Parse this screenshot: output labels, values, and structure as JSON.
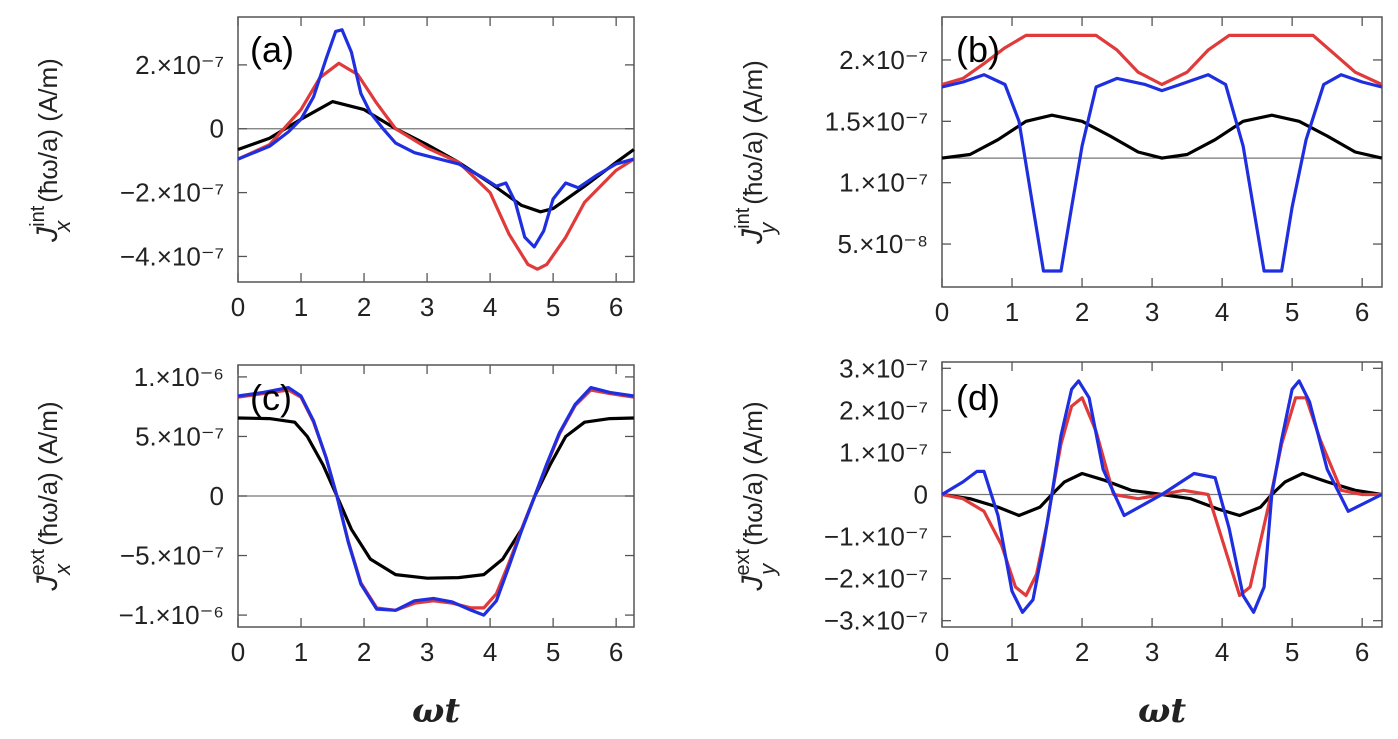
{
  "chart_data": [
    {
      "id": "a",
      "type": "line",
      "panel_label": "(a)",
      "ylabel": "J_x^int (ħω/a) (A/m)",
      "ylabel_parts": {
        "sym": "J",
        "sub": "x",
        "sup": "int",
        "rest": "(ħω/a) (A/m)"
      },
      "xlabel": "",
      "xlim": [
        0,
        6.2832
      ],
      "ylim": [
        -4.8e-07,
        3.5e-07
      ],
      "hline": 0,
      "xticks": [
        {
          "v": 0,
          "label": "0"
        },
        {
          "v": 1,
          "label": "1"
        },
        {
          "v": 2,
          "label": "2"
        },
        {
          "v": 3,
          "label": "3"
        },
        {
          "v": 4,
          "label": "4"
        },
        {
          "v": 5,
          "label": "5"
        },
        {
          "v": 6,
          "label": "6"
        }
      ],
      "yticks": [
        {
          "v": 2e-07,
          "label": "2.×10⁻⁷"
        },
        {
          "v": 0,
          "label": "0"
        },
        {
          "v": -2e-07,
          "label": "−2.×10⁻⁷"
        },
        {
          "v": -4e-07,
          "label": "−4.×10⁻⁷"
        }
      ],
      "series": [
        {
          "name": "black",
          "color": "#000000",
          "x": [
            0,
            0.5,
            1,
            1.5,
            2,
            2.5,
            3,
            3.5,
            4,
            4.5,
            4.8,
            5,
            5.5,
            6,
            6.28
          ],
          "y": [
            -6.5e-08,
            -3e-08,
            3e-08,
            8.5e-08,
            6e-08,
            0,
            -5e-08,
            -1.05e-07,
            -1.7e-07,
            -2.4e-07,
            -2.6e-07,
            -2.5e-07,
            -1.8e-07,
            -1.05e-07,
            -6.5e-08
          ]
        },
        {
          "name": "red",
          "color": "#e03a3a",
          "x": [
            0,
            0.5,
            1,
            1.3,
            1.6,
            1.9,
            2.2,
            2.5,
            3,
            3.5,
            4,
            4.3,
            4.6,
            4.75,
            4.9,
            5.2,
            5.5,
            6,
            6.28
          ],
          "y": [
            -9.5e-08,
            -5e-08,
            6e-08,
            1.6e-07,
            2.05e-07,
            1.7e-07,
            8e-08,
            0,
            -6e-08,
            -1.05e-07,
            -2e-07,
            -3.3e-07,
            -4.25e-07,
            -4.4e-07,
            -4.25e-07,
            -3.4e-07,
            -2.3e-07,
            -1.3e-07,
            -9.5e-08
          ]
        },
        {
          "name": "blue",
          "color": "#1f2fe0",
          "x": [
            0,
            0.5,
            0.8,
            1,
            1.2,
            1.4,
            1.55,
            1.65,
            1.8,
            1.95,
            2.1,
            2.3,
            2.5,
            2.8,
            3,
            3.5,
            3.9,
            4.1,
            4.25,
            4.4,
            4.55,
            4.7,
            4.85,
            5,
            5.2,
            5.4,
            5.7,
            6,
            6.28
          ],
          "y": [
            -9.5e-08,
            -5.5e-08,
            -1e-08,
            3e-08,
            1e-07,
            2.2e-07,
            3.05e-07,
            3.1e-07,
            2.4e-07,
            1.1e-07,
            5e-08,
            0,
            -4.5e-08,
            -7.5e-08,
            -8.5e-08,
            -1.1e-07,
            -1.55e-07,
            -1.8e-07,
            -1.7e-07,
            -2.3e-07,
            -3.4e-07,
            -3.7e-07,
            -3.2e-07,
            -2.2e-07,
            -1.7e-07,
            -1.85e-07,
            -1.45e-07,
            -1.1e-07,
            -9.5e-08
          ]
        }
      ]
    },
    {
      "id": "b",
      "type": "line",
      "panel_label": "(b)",
      "ylabel": "J_y^int (ħω/a) (A/m)",
      "ylabel_parts": {
        "sym": "J",
        "sub": "y",
        "sup": "int",
        "rest": "(ħω/a) (A/m)"
      },
      "xlabel": "",
      "xlim": [
        0,
        6.2832
      ],
      "ylim": [
        1.5e-08,
        2.35e-07
      ],
      "hline": 1.2e-07,
      "xticks": [
        {
          "v": 0,
          "label": "0"
        },
        {
          "v": 1,
          "label": "1"
        },
        {
          "v": 2,
          "label": "2"
        },
        {
          "v": 3,
          "label": "3"
        },
        {
          "v": 4,
          "label": "4"
        },
        {
          "v": 5,
          "label": "5"
        },
        {
          "v": 6,
          "label": "6"
        }
      ],
      "yticks": [
        {
          "v": 2e-07,
          "label": "2.×10⁻⁷"
        },
        {
          "v": 1.5e-07,
          "label": "1.5×10⁻⁷"
        },
        {
          "v": 1e-07,
          "label": "1.×10⁻⁷"
        },
        {
          "v": 5e-08,
          "label": "5.×10⁻⁸"
        }
      ],
      "series": [
        {
          "name": "black",
          "color": "#000000",
          "x": [
            0,
            0.4,
            0.8,
            1.2,
            1.57,
            2,
            2.4,
            2.8,
            3.14,
            3.5,
            3.9,
            4.3,
            4.71,
            5.1,
            5.5,
            5.9,
            6.28
          ],
          "y": [
            1.2e-07,
            1.23e-07,
            1.35e-07,
            1.5e-07,
            1.55e-07,
            1.5e-07,
            1.38e-07,
            1.25e-07,
            1.2e-07,
            1.23e-07,
            1.35e-07,
            1.5e-07,
            1.55e-07,
            1.5e-07,
            1.38e-07,
            1.25e-07,
            1.2e-07
          ]
        },
        {
          "name": "red",
          "color": "#e03a3a",
          "x": [
            0,
            0.3,
            0.6,
            0.9,
            1.2,
            2.2,
            2.5,
            2.8,
            3.14,
            3.5,
            3.8,
            4.1,
            4.4,
            5.3,
            5.6,
            5.9,
            6.28
          ],
          "y": [
            1.8e-07,
            1.85e-07,
            1.97e-07,
            2.1e-07,
            2.2e-07,
            2.2e-07,
            2.08e-07,
            1.9e-07,
            1.8e-07,
            1.9e-07,
            2.08e-07,
            2.2e-07,
            2.2e-07,
            2.2e-07,
            2.05e-07,
            1.9e-07,
            1.8e-07
          ]
        },
        {
          "name": "blue",
          "color": "#1f2fe0",
          "x": [
            0,
            0.3,
            0.6,
            0.9,
            1.1,
            1.3,
            1.45,
            1.7,
            1.85,
            2.0,
            2.2,
            2.5,
            2.9,
            3.14,
            3.4,
            3.8,
            4.05,
            4.3,
            4.6,
            4.85,
            5.0,
            5.2,
            5.45,
            5.7,
            6,
            6.28
          ],
          "y": [
            1.78e-07,
            1.82e-07,
            1.88e-07,
            1.8e-07,
            1.5e-07,
            8e-08,
            2.8e-08,
            2.8e-08,
            8e-08,
            1.3e-07,
            1.78e-07,
            1.85e-07,
            1.8e-07,
            1.75e-07,
            1.8e-07,
            1.88e-07,
            1.8e-07,
            1.3e-07,
            2.8e-08,
            2.8e-08,
            8e-08,
            1.35e-07,
            1.8e-07,
            1.88e-07,
            1.82e-07,
            1.78e-07
          ]
        }
      ]
    },
    {
      "id": "c",
      "type": "line",
      "panel_label": "(c)",
      "ylabel": "J_x^ext (ħω/a) (A/m)",
      "ylabel_parts": {
        "sym": "J",
        "sub": "x",
        "sup": "ext",
        "rest": "(ħω/a) (A/m)"
      },
      "xlabel": "ωt",
      "xlim": [
        0,
        6.2832
      ],
      "ylim": [
        -1.1e-06,
        1.1e-06
      ],
      "hline": 0,
      "xticks": [
        {
          "v": 0,
          "label": "0"
        },
        {
          "v": 1,
          "label": "1"
        },
        {
          "v": 2,
          "label": "2"
        },
        {
          "v": 3,
          "label": "3"
        },
        {
          "v": 4,
          "label": "4"
        },
        {
          "v": 5,
          "label": "5"
        },
        {
          "v": 6,
          "label": "6"
        }
      ],
      "yticks": [
        {
          "v": 1e-06,
          "label": "1.×10⁻⁶"
        },
        {
          "v": 5e-07,
          "label": "5.×10⁻⁷"
        },
        {
          "v": 0,
          "label": "0"
        },
        {
          "v": -5e-07,
          "label": "−5.×10⁻⁷"
        },
        {
          "v": -1e-06,
          "label": "−1.×10⁻⁶"
        }
      ],
      "series": [
        {
          "name": "black",
          "color": "#000000",
          "x": [
            0,
            0.5,
            0.9,
            1.1,
            1.35,
            1.57,
            1.8,
            2.1,
            2.5,
            3,
            3.5,
            3.9,
            4.2,
            4.5,
            4.71,
            4.95,
            5.2,
            5.5,
            5.9,
            6.28
          ],
          "y": [
            6.55e-07,
            6.5e-07,
            6.2e-07,
            5e-07,
            2.6e-07,
            0,
            -2.8e-07,
            -5.3e-07,
            -6.6e-07,
            -6.9e-07,
            -6.85e-07,
            -6.6e-07,
            -5.3e-07,
            -2.8e-07,
            0,
            2.6e-07,
            5e-07,
            6.2e-07,
            6.5e-07,
            6.55e-07
          ]
        },
        {
          "name": "red",
          "color": "#e03a3a",
          "x": [
            0,
            0.4,
            0.8,
            1.0,
            1.2,
            1.4,
            1.57,
            1.75,
            1.95,
            2.2,
            2.5,
            2.8,
            3.1,
            3.4,
            3.7,
            3.9,
            4.1,
            4.3,
            4.5,
            4.71,
            4.9,
            5.1,
            5.35,
            5.6,
            5.9,
            6.28
          ],
          "y": [
            8.3e-07,
            8.6e-07,
            8.9e-07,
            8.3e-07,
            6.2e-07,
            3.2e-07,
            0,
            -3.8e-07,
            -7.3e-07,
            -9.4e-07,
            -9.6e-07,
            -9e-07,
            -8.8e-07,
            -9e-07,
            -9.4e-07,
            -9.4e-07,
            -8.2e-07,
            -5.6e-07,
            -2.8e-07,
            0,
            2.6e-07,
            5.2e-07,
            7.6e-07,
            8.9e-07,
            8.6e-07,
            8.3e-07
          ]
        },
        {
          "name": "blue",
          "color": "#1f2fe0",
          "x": [
            0,
            0.4,
            0.8,
            1.0,
            1.2,
            1.4,
            1.57,
            1.75,
            1.95,
            2.2,
            2.5,
            2.8,
            3.1,
            3.4,
            3.7,
            3.9,
            4.1,
            4.3,
            4.5,
            4.71,
            4.9,
            5.1,
            5.35,
            5.6,
            5.9,
            6.28
          ],
          "y": [
            8.4e-07,
            8.7e-07,
            9.1e-07,
            8.4e-07,
            6.3e-07,
            3.2e-07,
            0,
            -3.9e-07,
            -7.4e-07,
            -9.5e-07,
            -9.6e-07,
            -8.8e-07,
            -8.6e-07,
            -8.9e-07,
            -9.6e-07,
            -1e-06,
            -8.8e-07,
            -5.9e-07,
            -2.9e-07,
            0,
            2.7e-07,
            5.3e-07,
            7.7e-07,
            9.1e-07,
            8.7e-07,
            8.4e-07
          ]
        }
      ]
    },
    {
      "id": "d",
      "type": "line",
      "panel_label": "(d)",
      "ylabel": "J_y^ext (ħω/a) (A/m)",
      "ylabel_parts": {
        "sym": "J",
        "sub": "y",
        "sup": "ext",
        "rest": "(ħω/a) (A/m)"
      },
      "xlabel": "ωt",
      "xlim": [
        0,
        6.2832
      ],
      "ylim": [
        -3.15e-07,
        3.15e-07
      ],
      "hline": 0,
      "xticks": [
        {
          "v": 0,
          "label": "0"
        },
        {
          "v": 1,
          "label": "1"
        },
        {
          "v": 2,
          "label": "2"
        },
        {
          "v": 3,
          "label": "3"
        },
        {
          "v": 4,
          "label": "4"
        },
        {
          "v": 5,
          "label": "5"
        },
        {
          "v": 6,
          "label": "6"
        }
      ],
      "yticks": [
        {
          "v": 3e-07,
          "label": "3.×10⁻⁷"
        },
        {
          "v": 2e-07,
          "label": "2.×10⁻⁷"
        },
        {
          "v": 1e-07,
          "label": "1.×10⁻⁷"
        },
        {
          "v": 0,
          "label": "0"
        },
        {
          "v": -1e-07,
          "label": "−1.×10⁻⁷"
        },
        {
          "v": -2e-07,
          "label": "−2.×10⁻⁷"
        },
        {
          "v": -3e-07,
          "label": "−3.×10⁻⁷"
        }
      ],
      "series": [
        {
          "name": "black",
          "color": "#000000",
          "x": [
            0,
            0.4,
            0.8,
            1.1,
            1.4,
            1.57,
            1.75,
            2.0,
            2.3,
            2.7,
            3.14,
            3.55,
            3.95,
            4.25,
            4.55,
            4.71,
            4.9,
            5.15,
            5.5,
            5.9,
            6.28
          ],
          "y": [
            0,
            -1e-08,
            -3e-08,
            -5e-08,
            -3e-08,
            0,
            3e-08,
            5e-08,
            3.5e-08,
            1e-08,
            0,
            -1e-08,
            -3.5e-08,
            -5e-08,
            -3e-08,
            0,
            3e-08,
            5e-08,
            3e-08,
            1e-08,
            0
          ]
        },
        {
          "name": "red",
          "color": "#e03a3a",
          "x": [
            0,
            0.3,
            0.6,
            0.85,
            1.05,
            1.2,
            1.35,
            1.5,
            1.57,
            1.7,
            1.85,
            2.0,
            2.2,
            2.45,
            2.8,
            3.14,
            3.45,
            3.8,
            4.1,
            4.25,
            4.4,
            4.55,
            4.7,
            4.85,
            5.05,
            5.2,
            5.4,
            5.7,
            6,
            6.28
          ],
          "y": [
            0,
            -1e-08,
            -4e-08,
            -1.2e-07,
            -2.2e-07,
            -2.4e-07,
            -1.9e-07,
            -7e-08,
            0,
            1.2e-07,
            2.1e-07,
            2.3e-07,
            1.5e-07,
            0,
            -1e-08,
            0,
            1e-08,
            0,
            -1.6e-07,
            -2.4e-07,
            -2.2e-07,
            -1.1e-07,
            0,
            1.2e-07,
            2.3e-07,
            2.3e-07,
            1.3e-07,
            1e-08,
            0,
            0
          ]
        },
        {
          "name": "blue",
          "color": "#1f2fe0",
          "x": [
            0,
            0.3,
            0.5,
            0.6,
            0.8,
            1.0,
            1.15,
            1.3,
            1.45,
            1.57,
            1.7,
            1.85,
            1.95,
            2.1,
            2.3,
            2.6,
            3.14,
            3.6,
            3.9,
            4.1,
            4.3,
            4.45,
            4.6,
            4.71,
            4.85,
            5.0,
            5.1,
            5.25,
            5.5,
            5.8,
            6.28
          ],
          "y": [
            0,
            3e-08,
            5.5e-08,
            5.5e-08,
            -5e-08,
            -2.3e-07,
            -2.8e-07,
            -2.5e-07,
            -1.2e-07,
            0,
            1.4e-07,
            2.5e-07,
            2.7e-07,
            2.3e-07,
            6e-08,
            -5e-08,
            0,
            5e-08,
            4e-08,
            -8e-08,
            -2.4e-07,
            -2.8e-07,
            -2.2e-07,
            0,
            1.3e-07,
            2.5e-07,
            2.7e-07,
            2.2e-07,
            6e-08,
            -4e-08,
            0
          ]
        }
      ]
    }
  ]
}
